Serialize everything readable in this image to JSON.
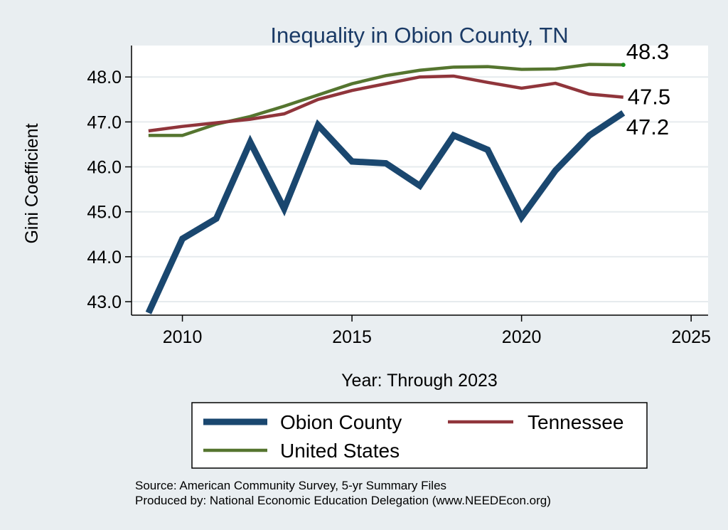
{
  "chart_data": {
    "type": "line",
    "title": "Inequality in Obion County, TN",
    "xlabel": "Year: Through 2023",
    "ylabel": "Gini Coefficient",
    "xlim": [
      2008.5,
      2025.5
    ],
    "ylim": [
      42.7,
      48.7
    ],
    "xticks": [
      2010,
      2015,
      2020,
      2025
    ],
    "yticks": [
      43.0,
      44.0,
      45.0,
      46.0,
      47.0,
      48.0
    ],
    "ytick_labels": [
      "43.0",
      "44.0",
      "45.0",
      "46.0",
      "47.0",
      "48.0"
    ],
    "grid": "horizontal",
    "legend_position": "bottom",
    "x": [
      2009,
      2010,
      2011,
      2012,
      2013,
      2014,
      2015,
      2016,
      2017,
      2018,
      2019,
      2020,
      2021,
      2022,
      2023
    ],
    "series": [
      {
        "name": "Obion County",
        "color": "#1a476f",
        "values": [
          42.75,
          44.4,
          44.85,
          46.55,
          45.07,
          46.93,
          46.12,
          46.08,
          45.58,
          46.7,
          46.38,
          44.88,
          45.92,
          46.7,
          47.2
        ],
        "end_label": "47.2"
      },
      {
        "name": "Tennessee",
        "color": "#90353b",
        "values": [
          46.8,
          46.9,
          46.98,
          47.06,
          47.18,
          47.5,
          47.7,
          47.85,
          48.0,
          48.02,
          47.88,
          47.75,
          47.86,
          47.62,
          47.55
        ],
        "end_label": "47.5"
      },
      {
        "name": "United States",
        "color": "#55752f",
        "values": [
          46.7,
          46.7,
          46.95,
          47.12,
          47.35,
          47.6,
          47.85,
          48.03,
          48.15,
          48.22,
          48.23,
          48.17,
          48.18,
          48.28,
          48.27
        ],
        "end_label": "48.3"
      }
    ],
    "source_lines": [
      "Source: American Community Survey, 5-yr Summary Files",
      "Produced by: National Economic Education Delegation (www.NEEDEcon.org)"
    ]
  }
}
